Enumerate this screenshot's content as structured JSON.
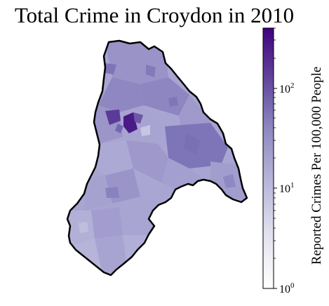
{
  "title": "Total Crime in Croydon in 2010",
  "colorbar": {
    "label": "Reported Crimes Per 100,000 People",
    "scale": "log",
    "range": [
      1,
      400
    ],
    "ticks": [
      {
        "base": "10",
        "exp": "0",
        "value": 1
      },
      {
        "base": "10",
        "exp": "1",
        "value": 10
      },
      {
        "base": "10",
        "exp": "2",
        "value": 100
      }
    ],
    "colormap": "Purples",
    "colors": [
      "#fcfbfd",
      "#efedf5",
      "#dadaeb",
      "#bcbddc",
      "#9e9ac8",
      "#807dba",
      "#6a51a3",
      "#54278f",
      "#3f007d"
    ]
  },
  "map": {
    "region": "Croydon",
    "typical_value_range": [
      10,
      40
    ],
    "hotspot_value": 350
  }
}
